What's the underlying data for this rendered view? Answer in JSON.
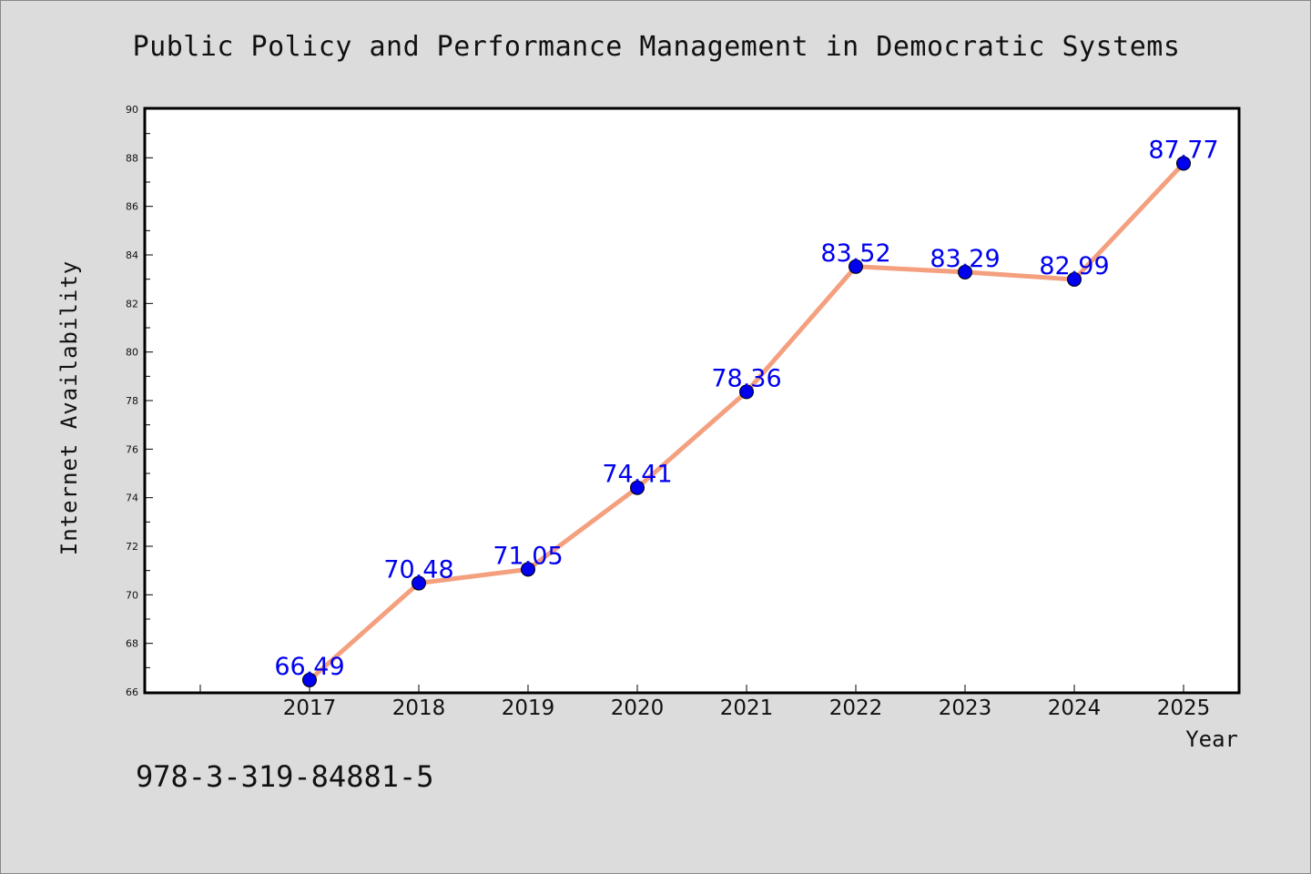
{
  "page": {
    "title": "Public Policy and Performance Management in Democratic Systems",
    "footer_code": "978-3-319-84881-5",
    "background": "#dcdcdc"
  },
  "chart_data": {
    "type": "line",
    "title": "Public Policy and Performance Management in Democratic Systems",
    "xlabel": "Year",
    "ylabel": "Internet Availability",
    "ylim": [
      66,
      90
    ],
    "yticks": [
      66,
      68,
      70,
      72,
      74,
      76,
      78,
      80,
      82,
      84,
      86,
      88,
      90
    ],
    "grid": false,
    "categories": [
      "2017",
      "2018",
      "2019",
      "2020",
      "2021",
      "2022",
      "2023",
      "2024",
      "2025"
    ],
    "series": [
      {
        "values": [
          66.49,
          70.48,
          71.05,
          74.41,
          78.36,
          83.52,
          83.29,
          82.99,
          87.77
        ],
        "data_labels": [
          "66.49",
          "70.48",
          "71.05",
          "74.41",
          "78.36",
          "83.52",
          "83.29",
          "82.99",
          "87.77"
        ],
        "line_color": "#f4a07e",
        "marker_color": "#0000ee",
        "label_color": "#0000ee"
      }
    ]
  }
}
